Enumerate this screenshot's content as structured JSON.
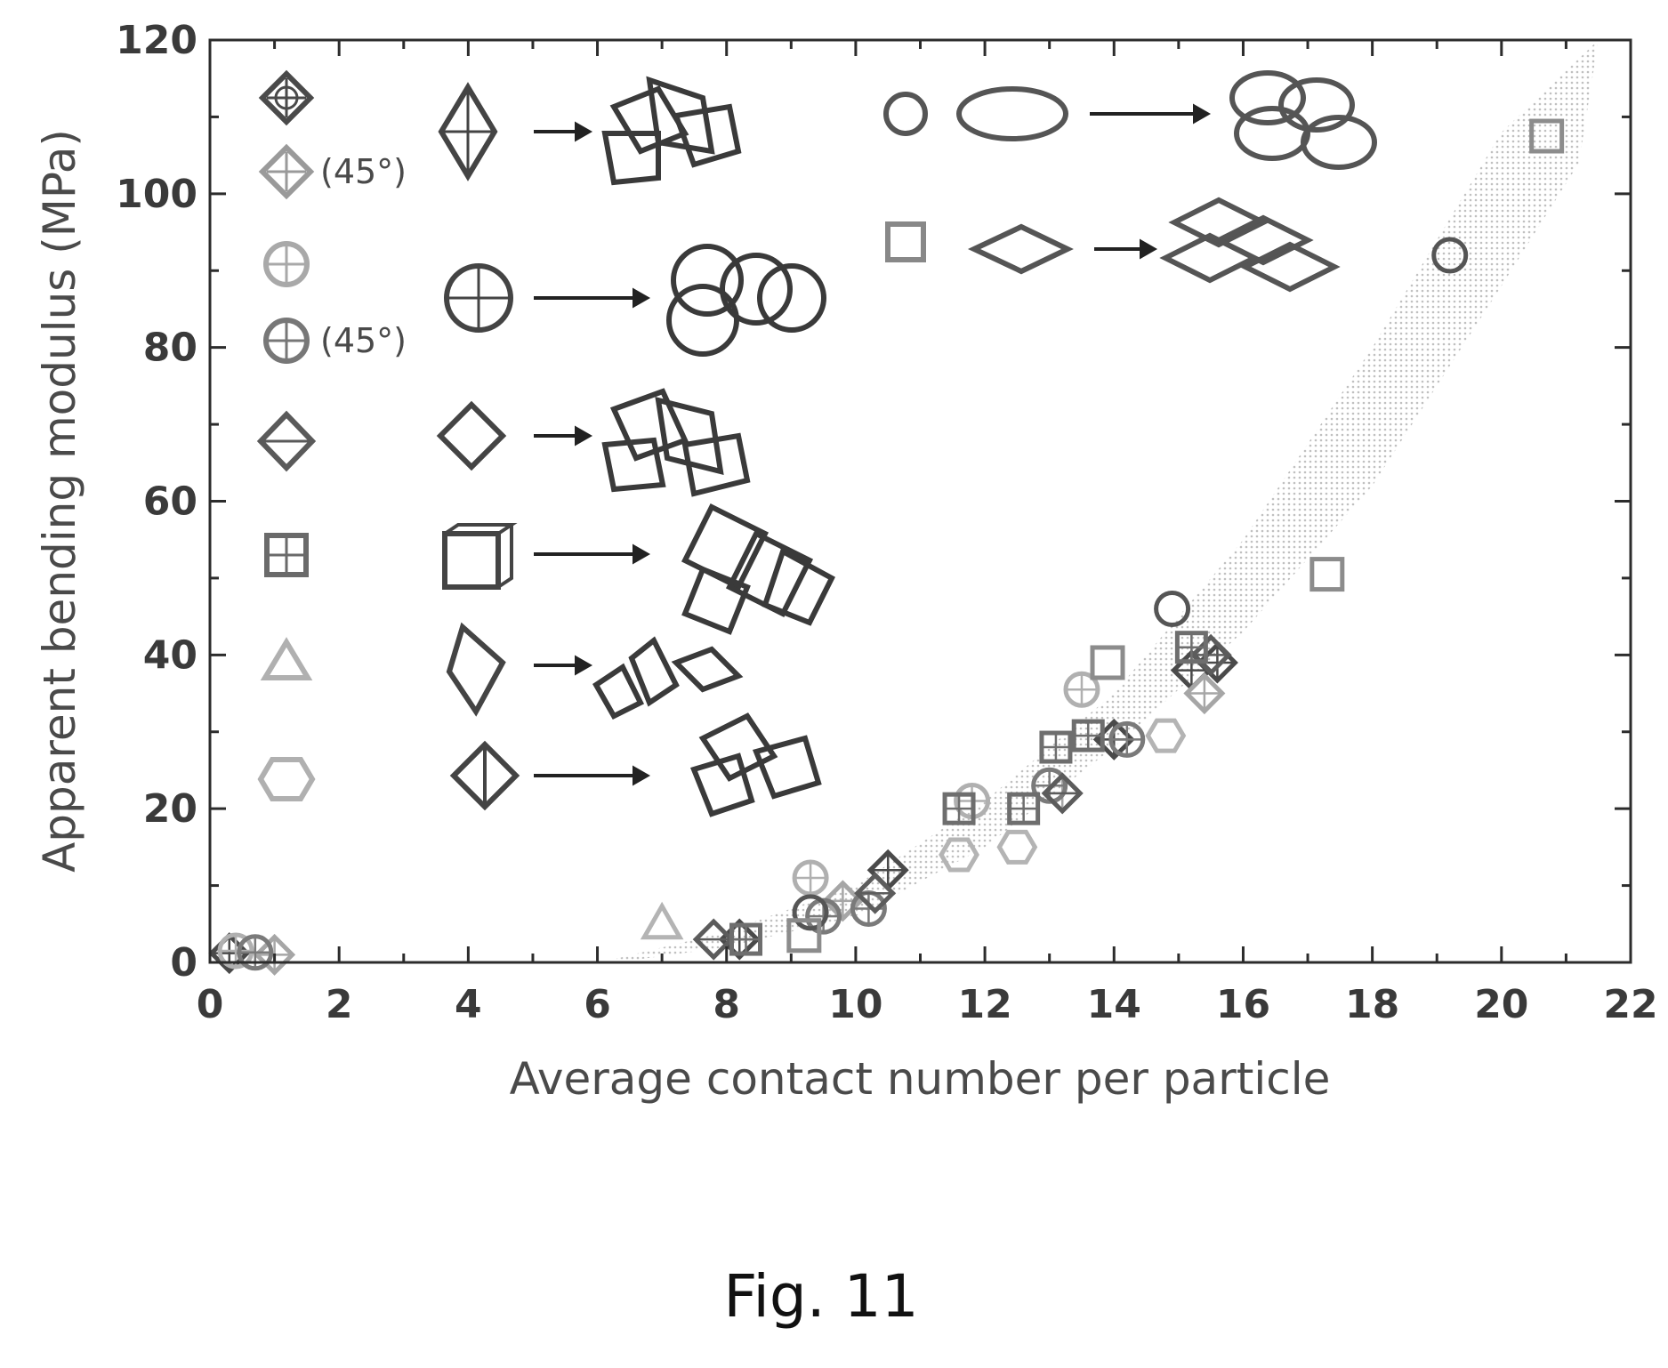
{
  "chart_data": {
    "type": "scatter",
    "xlabel": "Average contact number per particle",
    "ylabel": "Apparent bending modulus (MPa)",
    "xlim": [
      0,
      22
    ],
    "ylim": [
      0,
      120
    ],
    "x_ticks": [
      "0",
      "2",
      "4",
      "6",
      "8",
      "10",
      "12",
      "14",
      "16",
      "18",
      "20",
      "22"
    ],
    "y_ticks": [
      "0",
      "20",
      "40",
      "60",
      "80",
      "100",
      "120"
    ],
    "grid": false,
    "legend_position": "top-left, inside plot",
    "legend_annotations": [
      "(45°)",
      "(45°)"
    ],
    "band": {
      "description": "shaded trend band",
      "lower": [
        [
          6.3,
          0
        ],
        [
          8,
          2
        ],
        [
          10,
          6
        ],
        [
          12,
          15
        ],
        [
          14,
          28
        ],
        [
          16,
          43
        ],
        [
          18,
          62
        ],
        [
          20,
          88
        ],
        [
          21.2,
          104
        ]
      ],
      "upper": [
        [
          6.3,
          0.5
        ],
        [
          8,
          4
        ],
        [
          10,
          10
        ],
        [
          12,
          21
        ],
        [
          14,
          35
        ],
        [
          16,
          55
        ],
        [
          18,
          80
        ],
        [
          20,
          108
        ],
        [
          21.5,
          120
        ]
      ]
    },
    "series": [
      {
        "marker": "octahedron",
        "points": [
          [
            0.3,
            1.2
          ],
          [
            8.2,
            3
          ],
          [
            10.5,
            12
          ],
          [
            14.0,
            29
          ],
          [
            15.2,
            38
          ],
          [
            15.6,
            39
          ]
        ]
      },
      {
        "marker": "octahedron-45",
        "points": [
          [
            1.0,
            1.0
          ],
          [
            9.8,
            8
          ],
          [
            13.2,
            22
          ],
          [
            15.4,
            35
          ]
        ]
      },
      {
        "marker": "sphere-frame",
        "points": [
          [
            0.4,
            1.5
          ],
          [
            9.3,
            11
          ],
          [
            11.8,
            21
          ],
          [
            13.5,
            35.5
          ]
        ]
      },
      {
        "marker": "sphere-frame-45",
        "points": [
          [
            0.7,
            1.3
          ],
          [
            9.5,
            6
          ],
          [
            10.2,
            7
          ],
          [
            13.0,
            23
          ],
          [
            14.2,
            29
          ]
        ]
      },
      {
        "marker": "bipyramid",
        "points": [
          [
            7.8,
            3
          ],
          [
            10.3,
            9
          ],
          [
            13.2,
            22
          ],
          [
            15.5,
            40
          ]
        ]
      },
      {
        "marker": "cube-frame",
        "points": [
          [
            8.3,
            3
          ],
          [
            11.6,
            20
          ],
          [
            12.6,
            20
          ],
          [
            13.1,
            28
          ],
          [
            13.6,
            29.5
          ],
          [
            15.2,
            41
          ]
        ]
      },
      {
        "marker": "tetrahedron",
        "points": [
          [
            7.0,
            5
          ]
        ]
      },
      {
        "marker": "ellipsoid-frame",
        "points": [
          [
            11.6,
            14
          ],
          [
            12.5,
            15
          ],
          [
            14.8,
            29.5
          ]
        ]
      },
      {
        "marker": "torus",
        "points": [
          [
            9.3,
            6.5
          ],
          [
            14.9,
            46
          ],
          [
            19.2,
            92
          ]
        ]
      },
      {
        "marker": "square-frame",
        "points": [
          [
            9.2,
            3.5
          ],
          [
            13.9,
            39
          ],
          [
            17.3,
            50.5
          ],
          [
            20.7,
            107.5
          ]
        ]
      }
    ]
  },
  "caption": "Fig. 11"
}
